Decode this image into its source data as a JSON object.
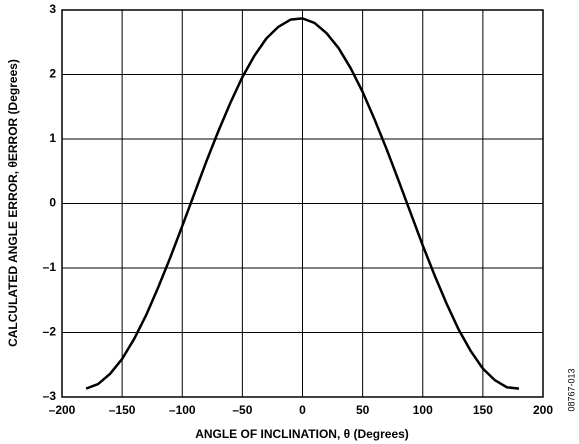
{
  "chart_data": {
    "type": "line",
    "xlabel": "ANGLE OF INCLINATION, θ (Degrees)",
    "ylabel": "CALCULATED ANGLE ERROR, θERROR (Degrees)",
    "annotation": "08767-013",
    "x": [
      -180,
      -170,
      -160,
      -150,
      -140,
      -130,
      -120,
      -110,
      -100,
      -90,
      -80,
      -70,
      -60,
      -50,
      -40,
      -30,
      -20,
      -10,
      0,
      10,
      20,
      30,
      40,
      50,
      60,
      70,
      80,
      90,
      100,
      110,
      120,
      130,
      140,
      150,
      160,
      170,
      180
    ],
    "series": [
      {
        "color": "#000000",
        "values": [
          -2.87,
          -2.8,
          -2.64,
          -2.41,
          -2.1,
          -1.73,
          -1.3,
          -0.84,
          -0.35,
          0.15,
          0.65,
          1.12,
          1.56,
          1.96,
          2.29,
          2.56,
          2.74,
          2.85,
          2.87,
          2.8,
          2.64,
          2.41,
          2.1,
          1.73,
          1.3,
          0.84,
          0.35,
          -0.15,
          -0.65,
          -1.12,
          -1.56,
          -1.96,
          -2.29,
          -2.56,
          -2.74,
          -2.85,
          -2.87
        ]
      }
    ],
    "xlim": [
      -200,
      200
    ],
    "ylim": [
      -3,
      3
    ],
    "xticks": [
      {
        "value": -200,
        "label": "–200"
      },
      {
        "value": -150,
        "label": "–150"
      },
      {
        "value": -100,
        "label": "–100"
      },
      {
        "value": -50,
        "label": "–50"
      },
      0,
      50,
      100,
      150,
      200
    ],
    "yticks": [
      {
        "value": -3,
        "label": "–3"
      },
      {
        "value": -2,
        "label": "–2"
      },
      {
        "value": -1,
        "label": "–1"
      },
      0,
      1,
      2,
      3
    ],
    "grid": true
  }
}
